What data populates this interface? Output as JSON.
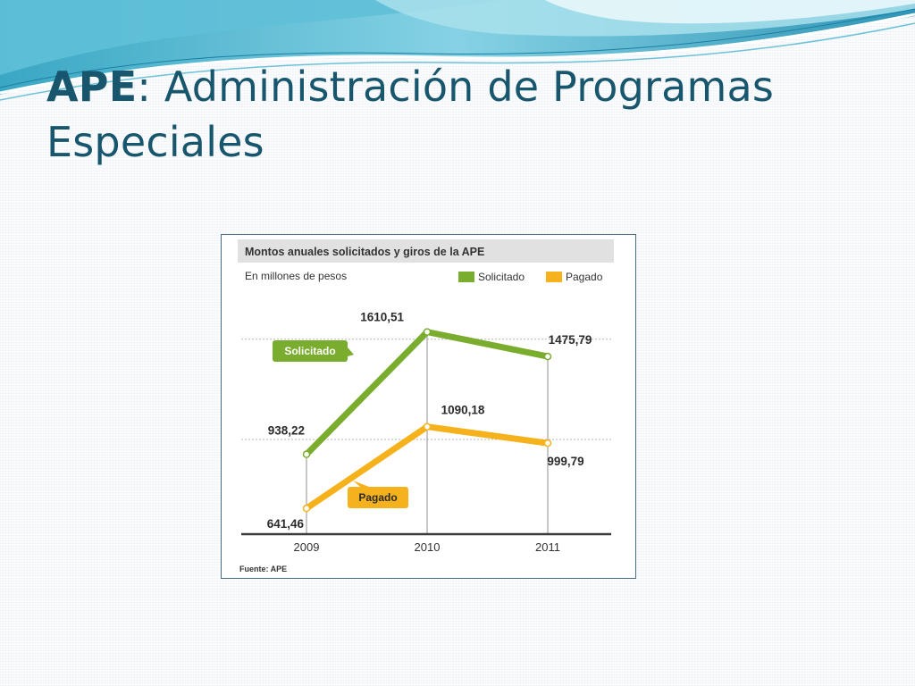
{
  "slide": {
    "title_bold": "APE",
    "title_rest": ": Administración de Programas",
    "title_line2": "Especiales"
  },
  "colors": {
    "title": "#17566d",
    "solicitado": "#7aac2e",
    "pagado": "#f5b21c",
    "header_band": "#e1e1e1",
    "grid": "#b5b5b5",
    "axis": "#3a3a3a"
  },
  "chart_data": {
    "type": "line",
    "title": "Montos anuales solicitados y giros de la APE",
    "subtitle": "En millones de pesos",
    "source": "Fuente: APE",
    "categories": [
      "2009",
      "2010",
      "2011"
    ],
    "ylim": [
      500,
      1800
    ],
    "grid": true,
    "legend_position": "top-right",
    "series": [
      {
        "name": "Solicitado",
        "color": "#7aac2e",
        "values": [
          938.22,
          1610.51,
          1475.79
        ],
        "value_labels": [
          "938,22",
          "1610,51",
          "1475,79"
        ],
        "tag": "Solicitado"
      },
      {
        "name": "Pagado",
        "color": "#f5b21c",
        "values": [
          641.46,
          1090.18,
          999.79
        ],
        "value_labels": [
          "641,46",
          "1090,18",
          "999,79"
        ],
        "tag": "Pagado"
      }
    ]
  }
}
